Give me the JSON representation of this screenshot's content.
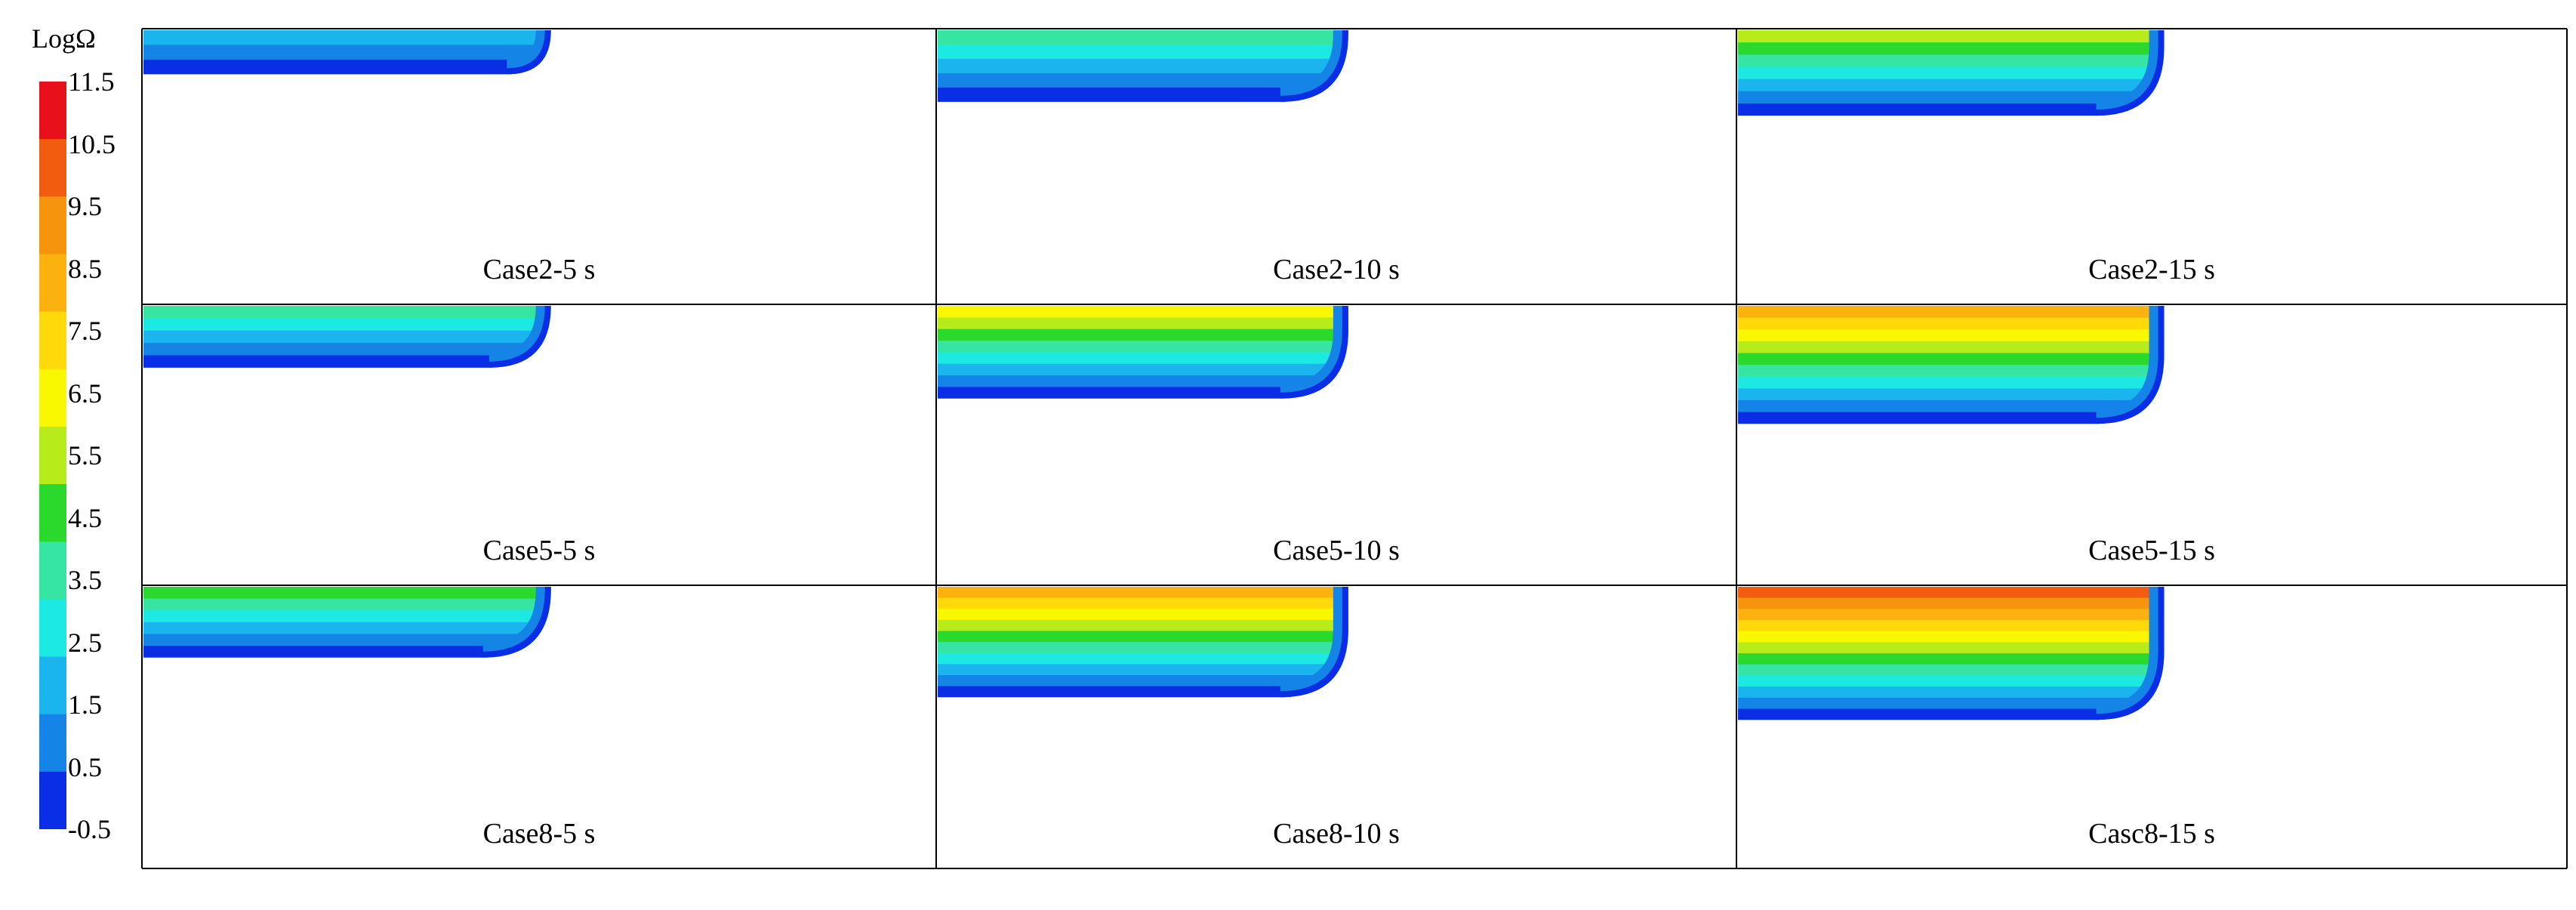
{
  "legend": {
    "title": "LogΩ",
    "ticks": [
      "11.5",
      "10.5",
      "9.5",
      "8.5",
      "7.5",
      "6.5",
      "5.5",
      "4.5",
      "3.5",
      "2.5",
      "1.5",
      "0.5",
      "-0.5"
    ],
    "bands_top_to_bottom": [
      "#e8101a",
      "#f25c0e",
      "#f7940d",
      "#fbb20f",
      "#ffd90a",
      "#f9f800",
      "#b7ec1a",
      "#2bd82c",
      "#37e5a2",
      "#1ce9e1",
      "#1ab5ee",
      "#1484e6",
      "#0a2de6"
    ]
  },
  "panels": [
    {
      "label": "Case2-5 s",
      "level": 2
    },
    {
      "label": "Case2-10 s",
      "level": 4
    },
    {
      "label": "Case2-15 s",
      "level": 6
    },
    {
      "label": "Case5-5 s",
      "level": 4
    },
    {
      "label": "Case5-10 s",
      "level": 7
    },
    {
      "label": "Case5-15 s",
      "level": 9
    },
    {
      "label": "Case8-5 s",
      "level": 5
    },
    {
      "label": "Case8-10 s",
      "level": 9
    },
    {
      "label": "Casc8-15 s",
      "level": 11
    }
  ],
  "panel_depth_fraction": [
    0.16,
    0.26,
    0.31,
    0.22,
    0.33,
    0.42,
    0.25,
    0.39,
    0.47
  ]
}
